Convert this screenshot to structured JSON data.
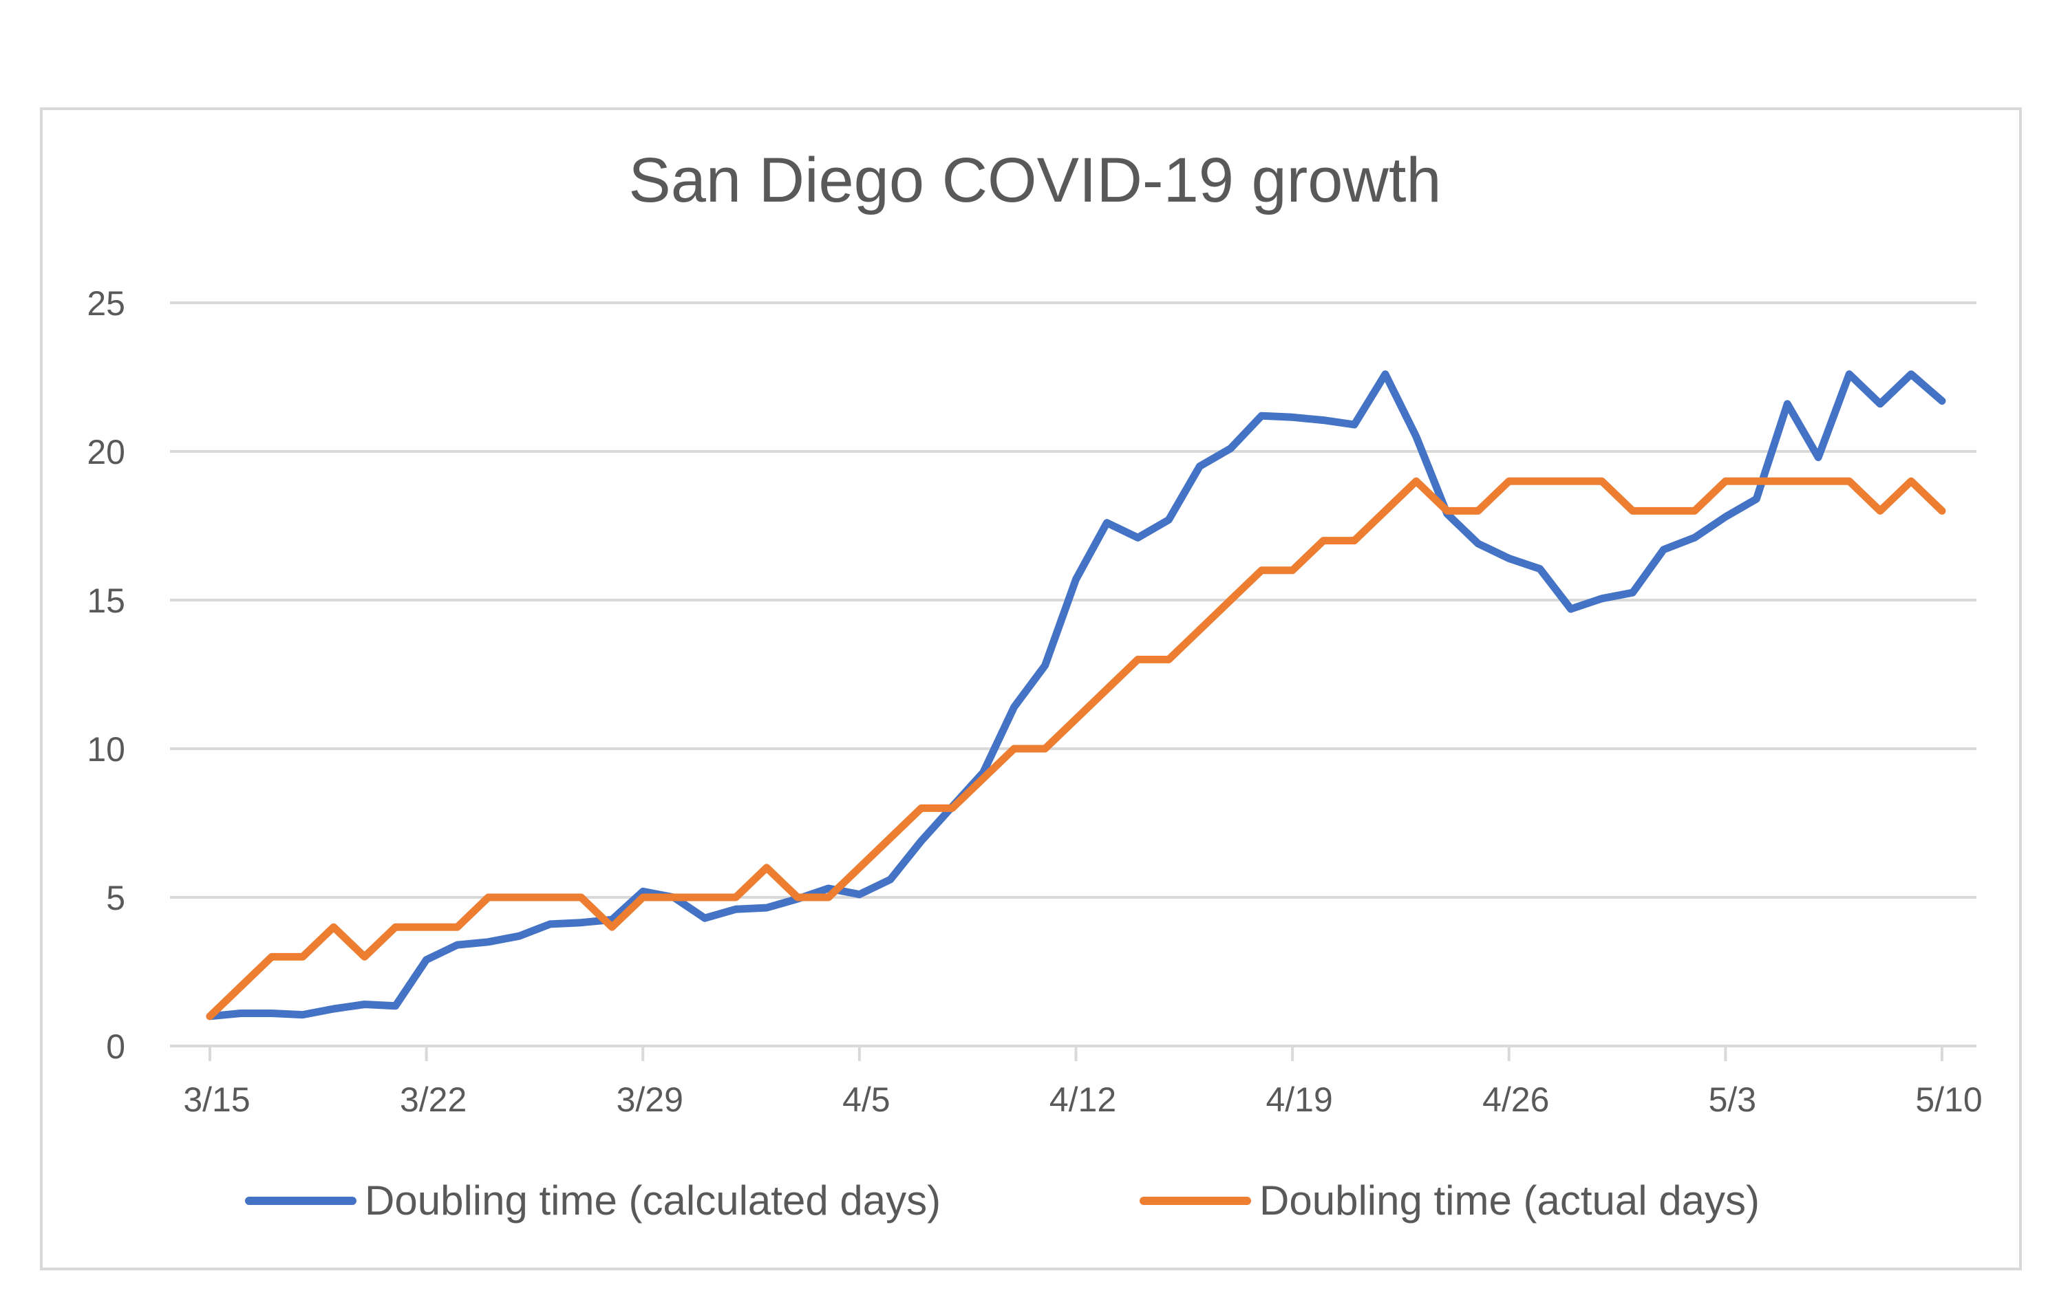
{
  "chart_data": {
    "type": "line",
    "title": "San Diego COVID-19 growth",
    "xlabel": "",
    "ylabel": "",
    "ylim": [
      0,
      25
    ],
    "yticks": [
      0,
      5,
      10,
      15,
      20,
      25
    ],
    "x_tick_labels": [
      "3/15",
      "3/22",
      "3/29",
      "4/5",
      "4/12",
      "4/19",
      "4/26",
      "5/3",
      "5/10"
    ],
    "x_tick_dates": [
      "3/15",
      "3/22",
      "3/29",
      "4/5",
      "4/12",
      "4/19",
      "4/26",
      "5/3",
      "5/10"
    ],
    "x": [
      "3/15",
      "3/16",
      "3/17",
      "3/18",
      "3/19",
      "3/20",
      "3/21",
      "3/22",
      "3/23",
      "3/24",
      "3/25",
      "3/26",
      "3/27",
      "3/28",
      "3/29",
      "3/30",
      "3/31",
      "4/1",
      "4/2",
      "4/3",
      "4/4",
      "4/5",
      "4/6",
      "4/7",
      "4/8",
      "4/9",
      "4/10",
      "4/11",
      "4/12",
      "4/13",
      "4/14",
      "4/15",
      "4/16",
      "4/17",
      "4/18",
      "4/19",
      "4/20",
      "4/21",
      "4/22",
      "4/23",
      "4/24",
      "4/25",
      "4/26",
      "4/27",
      "4/28",
      "4/29",
      "4/30",
      "5/1",
      "5/2",
      "5/3",
      "5/4",
      "5/5",
      "5/6",
      "5/7",
      "5/8",
      "5/9",
      "5/10"
    ],
    "grid": true,
    "legend_position": "bottom",
    "series": [
      {
        "name": "Doubling time (calculated days)",
        "color": "#4472c4",
        "values": [
          1.0,
          1.1,
          1.1,
          1.05,
          1.25,
          1.4,
          1.35,
          2.9,
          3.4,
          3.5,
          3.7,
          4.1,
          4.15,
          4.25,
          5.2,
          5.0,
          4.3,
          4.6,
          4.65,
          4.95,
          5.3,
          5.1,
          5.6,
          6.9,
          8.05,
          9.2,
          11.4,
          12.8,
          15.7,
          17.6,
          17.1,
          17.7,
          19.5,
          20.1,
          21.2,
          21.15,
          21.05,
          20.9,
          22.6,
          20.5,
          17.9,
          16.9,
          16.4,
          16.05,
          14.7,
          15.05,
          15.25,
          16.7,
          17.1,
          17.8,
          18.4,
          21.6,
          19.8,
          22.6,
          21.6,
          22.6,
          21.7
        ]
      },
      {
        "name": "Doubling time (actual days)",
        "color": "#ed7d31",
        "values": [
          1,
          2,
          3,
          3,
          4,
          3,
          4,
          4,
          4,
          5,
          5,
          5,
          5,
          4,
          5,
          5,
          5,
          5,
          6,
          5,
          5,
          6,
          7,
          8,
          8,
          9,
          10,
          10,
          11,
          12,
          13,
          13,
          14,
          15,
          16,
          16,
          17,
          17,
          18,
          19,
          18,
          18,
          19,
          19,
          19,
          19,
          18,
          18,
          18,
          19,
          19,
          19,
          19,
          19,
          18,
          19,
          18
        ]
      }
    ]
  }
}
